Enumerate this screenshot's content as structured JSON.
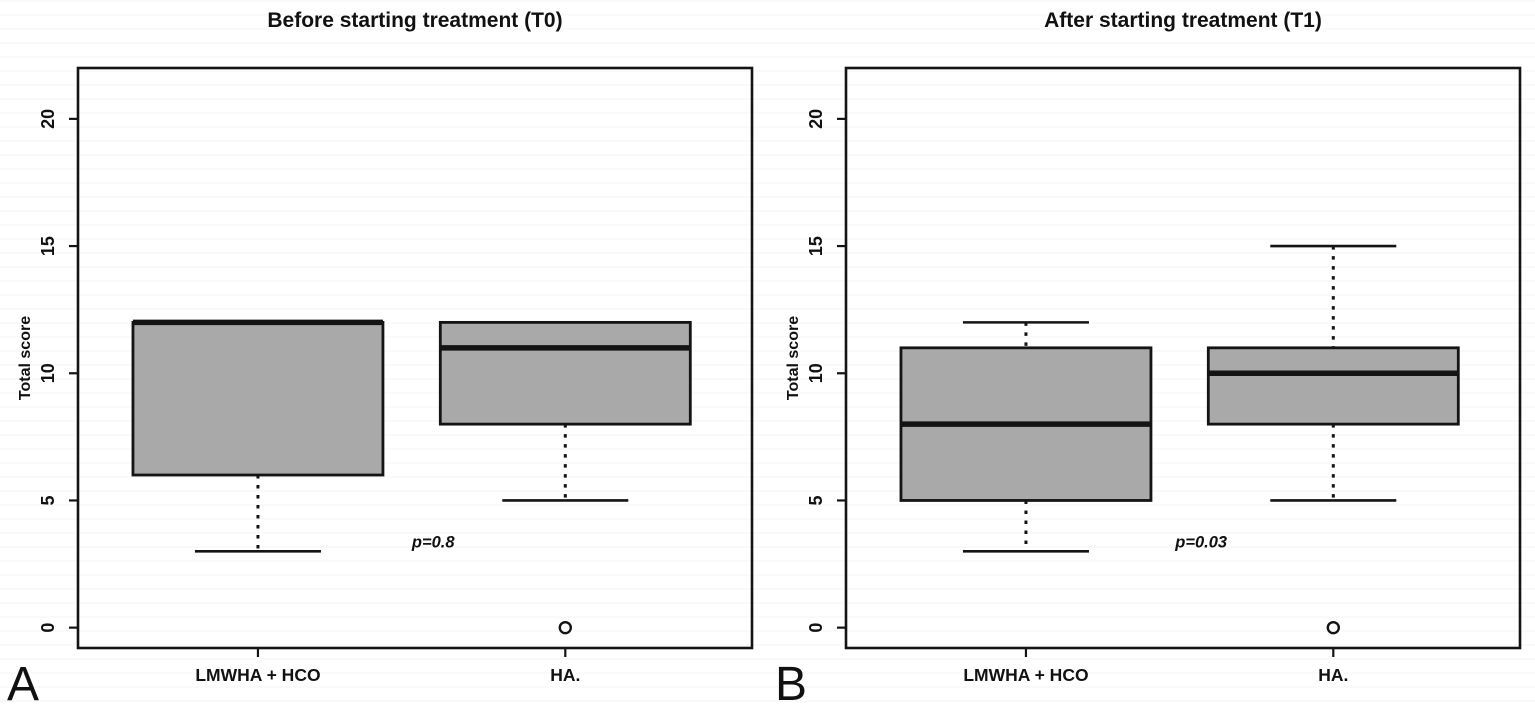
{
  "figure_caption_letters": [
    "A",
    "B"
  ],
  "colors": {
    "box_fill": "#a9a9a9",
    "stroke": "#141414",
    "background": "#ffffff",
    "text": "#111111"
  },
  "chart_data": [
    {
      "type": "boxplot",
      "title": "Before starting treatment (T0)",
      "panel_letter": "A",
      "ylabel": "Total score",
      "yticks": [
        0,
        5,
        10,
        15,
        20
      ],
      "ylim": [
        -0.8,
        22
      ],
      "grid": false,
      "p_label": "p=0.8",
      "categories": [
        "LMWHA + HCO",
        "HA."
      ],
      "series": [
        {
          "name": "LMWHA + HCO",
          "q1": 6,
          "median": 12,
          "q3": 12,
          "whisker_low": 3,
          "whisker_high": 12,
          "outliers": []
        },
        {
          "name": "HA.",
          "q1": 8,
          "median": 11,
          "q3": 12,
          "whisker_low": 5,
          "whisker_high": 12,
          "outliers": [
            0
          ]
        }
      ]
    },
    {
      "type": "boxplot",
      "title": "After starting treatment (T1)",
      "panel_letter": "B",
      "ylabel": "Total score",
      "yticks": [
        0,
        5,
        10,
        15,
        20
      ],
      "ylim": [
        -0.8,
        22
      ],
      "grid": false,
      "p_label": "p=0.03",
      "categories": [
        "LMWHA + HCO",
        "HA."
      ],
      "series": [
        {
          "name": "LMWHA + HCO",
          "q1": 5,
          "median": 8,
          "q3": 11,
          "whisker_low": 3,
          "whisker_high": 12,
          "outliers": []
        },
        {
          "name": "HA.",
          "q1": 8,
          "median": 10,
          "q3": 11,
          "whisker_low": 5,
          "whisker_high": 15,
          "outliers": [
            0
          ]
        }
      ]
    }
  ]
}
